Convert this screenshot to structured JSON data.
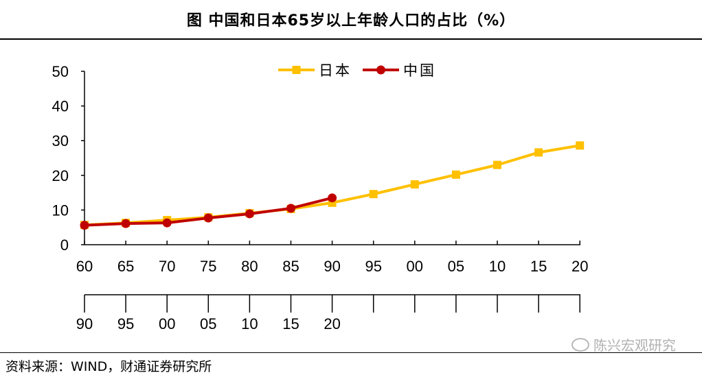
{
  "header": {
    "title": "图  中国和日本65岁以上年龄人口的占比（%）"
  },
  "source_text": "资料来源：WIND，财通证券研究所",
  "watermark_text": "陈兴宏观研究",
  "watermark_icon": "wechat-icon",
  "colors": {
    "japan": "#FFC000",
    "china": "#C00000",
    "axis": "#000000"
  },
  "chart_data": {
    "type": "line",
    "title": "图  中国和日本65岁以上年龄人口的占比（%）",
    "ylim": [
      0,
      50
    ],
    "yticks": [
      "0",
      "10",
      "20",
      "30",
      "40",
      "50"
    ],
    "x_primary_ticks": [
      "60",
      "65",
      "70",
      "75",
      "80",
      "85",
      "90",
      "95",
      "00",
      "05",
      "10",
      "15",
      "20"
    ],
    "x_secondary_ticks": [
      "90",
      "95",
      "00",
      "05",
      "10",
      "15",
      "20"
    ],
    "grid": false,
    "legend_position": "top-center",
    "series": [
      {
        "name": "日本",
        "color": "#FFC000",
        "marker": "square",
        "values": [
          5.7,
          6.3,
          7.1,
          7.9,
          9.1,
          10.3,
          12.1,
          14.6,
          17.4,
          20.2,
          23.0,
          26.6,
          28.6
        ]
      },
      {
        "name": "中国",
        "color": "#C00000",
        "marker": "circle",
        "values": [
          5.6,
          6.1,
          6.3,
          7.7,
          8.9,
          10.5,
          13.5
        ]
      }
    ]
  }
}
